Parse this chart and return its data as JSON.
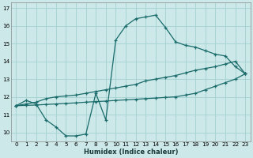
{
  "xlabel": "Humidex (Indice chaleur)",
  "bg_color": "#cce8e8",
  "grid_color": "#a8d4d4",
  "line_color": "#1a6b6b",
  "xlim": [
    -0.5,
    23.5
  ],
  "ylim": [
    9.5,
    17.3
  ],
  "xticks": [
    0,
    1,
    2,
    3,
    4,
    5,
    6,
    7,
    8,
    9,
    10,
    11,
    12,
    13,
    14,
    15,
    16,
    17,
    18,
    19,
    20,
    21,
    22,
    23
  ],
  "yticks": [
    10,
    11,
    12,
    13,
    14,
    15,
    16,
    17
  ],
  "curve1_x": [
    0,
    1,
    2,
    3,
    4,
    5,
    6,
    7,
    8,
    9,
    10,
    11,
    12,
    13,
    14,
    15,
    16,
    17,
    18,
    19,
    20,
    21,
    22,
    23
  ],
  "curve1_y": [
    11.5,
    11.8,
    11.6,
    10.7,
    10.3,
    9.8,
    9.8,
    9.9,
    12.2,
    10.7,
    15.2,
    16.0,
    16.4,
    16.5,
    16.6,
    15.9,
    15.1,
    14.9,
    14.8,
    14.6,
    14.4,
    14.3,
    13.7,
    13.3
  ],
  "curve2_x": [
    0,
    1,
    2,
    3,
    4,
    5,
    6,
    7,
    8,
    9,
    10,
    11,
    12,
    13,
    14,
    15,
    16,
    17,
    18,
    19,
    20,
    21,
    22,
    23
  ],
  "curve2_y": [
    11.5,
    11.6,
    11.7,
    11.9,
    12.0,
    12.05,
    12.1,
    12.2,
    12.3,
    12.4,
    12.5,
    12.6,
    12.7,
    12.9,
    13.0,
    13.1,
    13.2,
    13.35,
    13.5,
    13.6,
    13.7,
    13.85,
    14.0,
    13.3
  ],
  "curve3_x": [
    0,
    1,
    2,
    3,
    4,
    5,
    6,
    7,
    8,
    9,
    10,
    11,
    12,
    13,
    14,
    15,
    16,
    17,
    18,
    19,
    20,
    21,
    22,
    23
  ],
  "curve3_y": [
    11.5,
    11.52,
    11.54,
    11.57,
    11.6,
    11.63,
    11.66,
    11.7,
    11.73,
    11.76,
    11.8,
    11.83,
    11.86,
    11.9,
    11.93,
    11.97,
    12.0,
    12.1,
    12.2,
    12.4,
    12.6,
    12.8,
    13.0,
    13.3
  ]
}
